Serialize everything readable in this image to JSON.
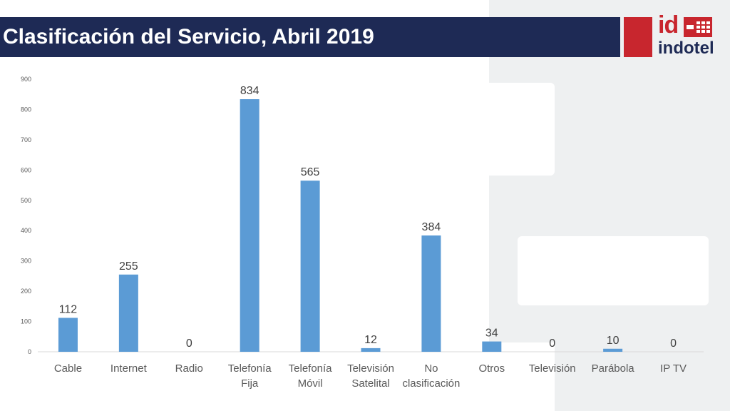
{
  "header": {
    "title": "Clasificación del Servicio, Abril 2019"
  },
  "logo": {
    "text_id": "id",
    "text_brand": "indotel"
  },
  "colors": {
    "bar": "#5b9bd5",
    "header_bg": "#1e2a55",
    "logo_red": "#c8262e"
  },
  "chart_data": {
    "type": "bar",
    "title": "",
    "xlabel": "",
    "ylabel": "",
    "categories": [
      [
        "Cable"
      ],
      [
        "Internet"
      ],
      [
        "Radio"
      ],
      [
        "Telefonía",
        "Fija"
      ],
      [
        "Telefonía",
        "Móvil"
      ],
      [
        "Televisión",
        "Satelital"
      ],
      [
        "No",
        "clasificación"
      ],
      [
        "Otros"
      ],
      [
        "Televisión"
      ],
      [
        "Parábola"
      ],
      [
        "IP TV"
      ]
    ],
    "values": [
      112,
      255,
      0,
      834,
      565,
      12,
      384,
      34,
      0,
      10,
      0
    ],
    "ylim": [
      0,
      900
    ],
    "yticks": [
      0,
      100,
      200,
      300,
      400,
      500,
      600,
      700,
      800,
      900
    ],
    "data_labels": true,
    "grid": false
  }
}
